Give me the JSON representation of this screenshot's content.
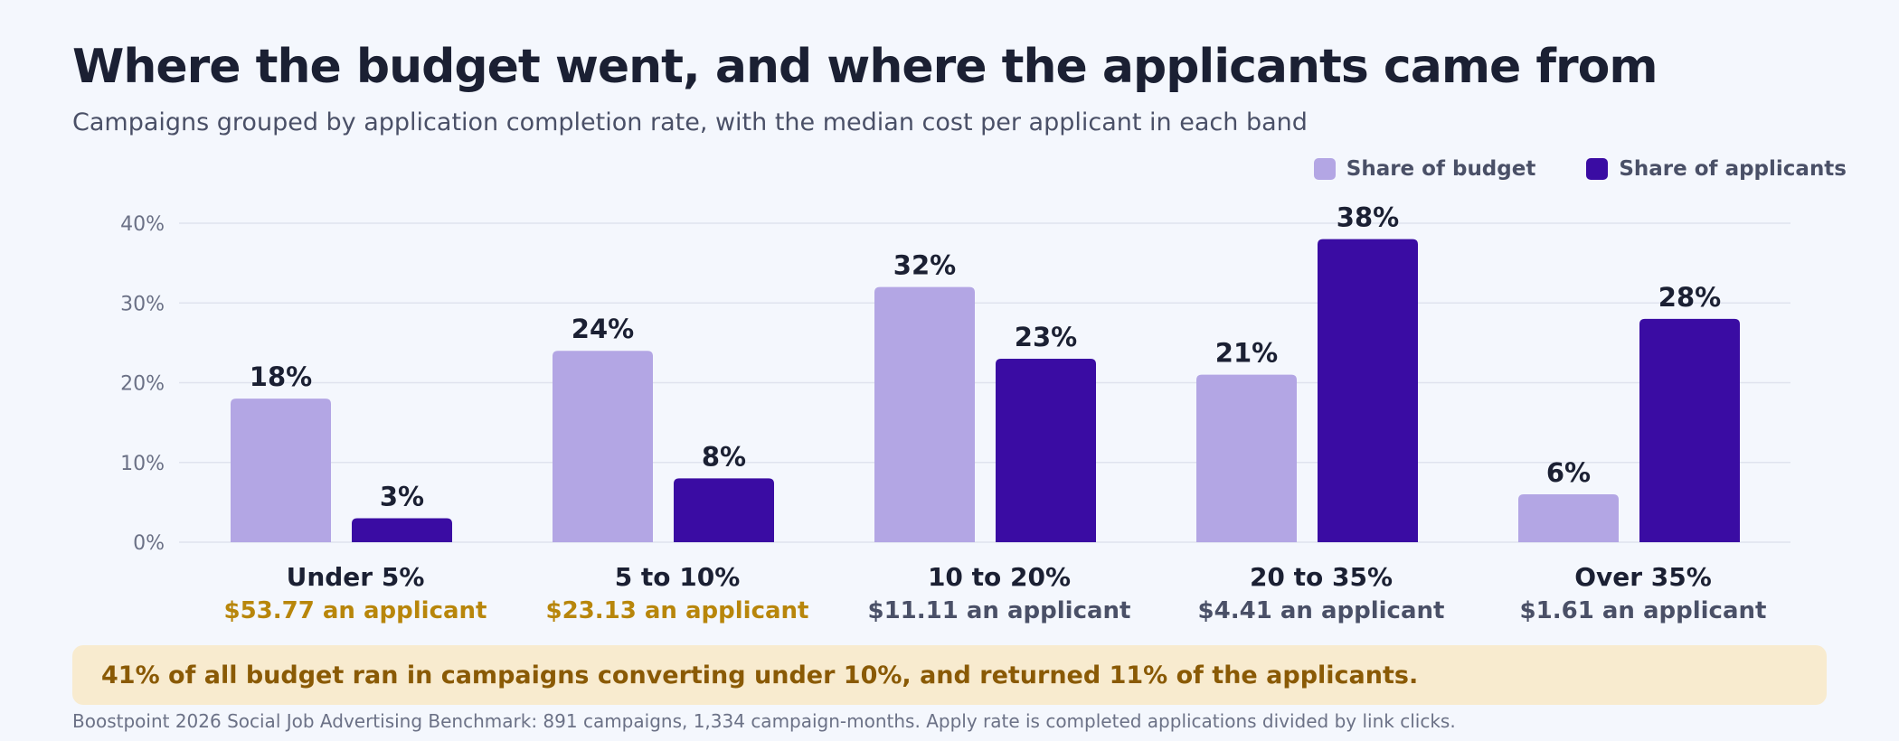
{
  "header": {
    "title": "Where the budget went, and where the applicants came from",
    "subtitle": "Campaigns grouped by application completion rate, with the median cost per applicant in each band"
  },
  "colors": {
    "budget": "#b3a6e4",
    "applicants": "#3a0ca3",
    "grid": "#dfe3ee",
    "tick": "#6b7186",
    "value_label": "#1b2033",
    "category": "#1b2033",
    "cost_high": "#b8860b",
    "cost_normal": "#4a5067"
  },
  "chart_data": {
    "type": "bar",
    "categories": [
      "Under 5%",
      "5 to 10%",
      "10 to 20%",
      "20 to 35%",
      "Over 35%"
    ],
    "series": [
      {
        "name": "Share of budget",
        "values": [
          18,
          24,
          32,
          21,
          6
        ],
        "labels": [
          "18%",
          "24%",
          "32%",
          "21%",
          "6%"
        ]
      },
      {
        "name": "Share of applicants",
        "values": [
          3,
          8,
          23,
          38,
          28
        ],
        "labels": [
          "3%",
          "8%",
          "23%",
          "38%",
          "28%"
        ]
      }
    ],
    "cost_labels": [
      "$53.77 an applicant",
      "$23.13 an applicant",
      "$11.11 an applicant",
      "$4.41 an applicant",
      "$1.61 an applicant"
    ],
    "cost_highlight": [
      true,
      true,
      false,
      false,
      false
    ],
    "ylim": [
      0,
      40
    ],
    "yticks": [
      0,
      10,
      20,
      30,
      40
    ],
    "ytick_labels": [
      "0%",
      "10%",
      "20%",
      "30%",
      "40%"
    ],
    "grid": true,
    "legend_position": "top-right"
  },
  "callout": {
    "text": "41% of all budget ran in campaigns converting under 10%, and returned 11% of the applicants."
  },
  "footnote": "Boostpoint 2026 Social Job Advertising Benchmark: 891 campaigns, 1,334 campaign-months. Apply rate is completed applications divided by link clicks."
}
